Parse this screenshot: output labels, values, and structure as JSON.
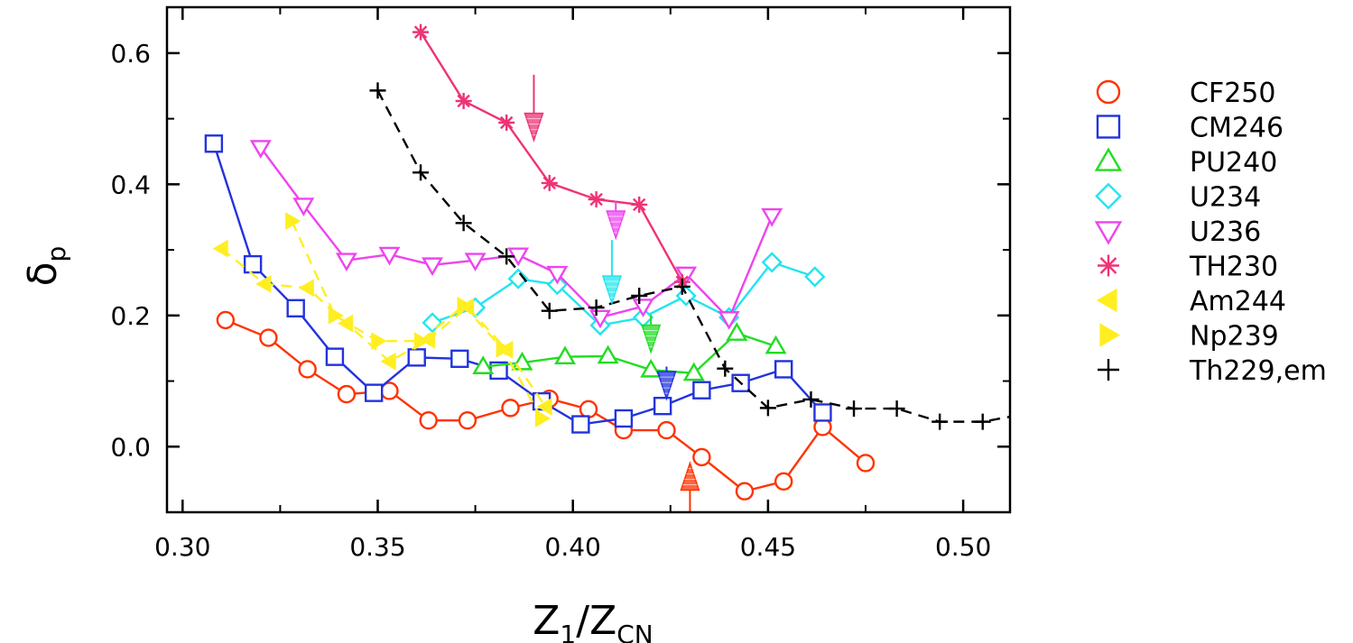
{
  "chart_data": {
    "type": "line",
    "xlabel_main": "Z",
    "xlabel_sub1": "1",
    "xlabel_slash": "/Z",
    "xlabel_sub2": "CN",
    "ylabel_main": "δ",
    "ylabel_sub": "p",
    "xlim": [
      0.296,
      0.512
    ],
    "ylim": [
      -0.1,
      0.67
    ],
    "x_ticks": [
      0.3,
      0.35,
      0.4,
      0.45,
      0.5
    ],
    "x_tick_labels": [
      "0.30",
      "0.35",
      "0.40",
      "0.45",
      "0.50"
    ],
    "y_ticks": [
      0.0,
      0.2,
      0.4,
      0.6
    ],
    "y_tick_labels": [
      "0.0",
      "0.2",
      "0.4",
      "0.6"
    ],
    "legend_position": "right, outside plot",
    "series": [
      {
        "name": "CF250",
        "color": "#ff3300",
        "marker": "circle",
        "line": "solid",
        "x": [
          0.311,
          0.322,
          0.332,
          0.342,
          0.353,
          0.363,
          0.373,
          0.384,
          0.394,
          0.404,
          0.413,
          0.424,
          0.433,
          0.444,
          0.454,
          0.464,
          0.475
        ],
        "y": [
          0.193,
          0.166,
          0.118,
          0.08,
          0.085,
          0.04,
          0.04,
          0.059,
          0.073,
          0.057,
          0.025,
          0.025,
          -0.016,
          -0.068,
          -0.053,
          0.03,
          -0.025
        ]
      },
      {
        "name": "CM246",
        "color": "#2233dd",
        "marker": "square",
        "line": "solid",
        "x": [
          0.308,
          0.318,
          0.329,
          0.339,
          0.349,
          0.36,
          0.371,
          0.381,
          0.392,
          0.402,
          0.413,
          0.423,
          0.433,
          0.443,
          0.454,
          0.464
        ],
        "y": [
          0.462,
          0.278,
          0.211,
          0.137,
          0.082,
          0.136,
          0.134,
          0.116,
          0.069,
          0.034,
          0.043,
          0.062,
          0.086,
          0.097,
          0.118,
          0.052
        ]
      },
      {
        "name": "PU240",
        "color": "#22dd22",
        "marker": "triangle-up",
        "line": "solid",
        "x": [
          0.377,
          0.387,
          0.398,
          0.409,
          0.42,
          0.431,
          0.442,
          0.452
        ],
        "y": [
          0.122,
          0.128,
          0.137,
          0.138,
          0.117,
          0.112,
          0.173,
          0.153
        ]
      },
      {
        "name": "U234",
        "color": "#22e5ee",
        "marker": "diamond",
        "line": "solid",
        "x": [
          0.364,
          0.375,
          0.386,
          0.396,
          0.407,
          0.418,
          0.429,
          0.44,
          0.451,
          0.462
        ],
        "y": [
          0.189,
          0.212,
          0.256,
          0.247,
          0.185,
          0.197,
          0.23,
          0.197,
          0.281,
          0.259
        ]
      },
      {
        "name": "U236",
        "color": "#ee44ee",
        "marker": "triangle-down",
        "line": "solid",
        "x": [
          0.32,
          0.331,
          0.342,
          0.353,
          0.364,
          0.375,
          0.386,
          0.396,
          0.407,
          0.418,
          0.429,
          0.44,
          0.451
        ],
        "y": [
          0.456,
          0.368,
          0.284,
          0.293,
          0.277,
          0.284,
          0.292,
          0.264,
          0.197,
          0.214,
          0.263,
          0.195,
          0.352
        ]
      },
      {
        "name": "TH230",
        "color": "#ee3377",
        "marker": "asterisk",
        "line": "solid",
        "x": [
          0.361,
          0.372,
          0.383,
          0.394,
          0.406,
          0.417,
          0.428
        ],
        "y": [
          0.632,
          0.527,
          0.494,
          0.402,
          0.377,
          0.369,
          0.251
        ]
      },
      {
        "name": "Am244",
        "color": "#ffee22",
        "marker": "triangle-left",
        "line": "dashed",
        "x": [
          0.31,
          0.321,
          0.332,
          0.342,
          0.353,
          0.363,
          0.373,
          0.383,
          0.393
        ],
        "y": [
          0.302,
          0.248,
          0.242,
          0.188,
          0.13,
          0.163,
          0.213,
          0.148,
          0.061
        ]
      },
      {
        "name": "Np239",
        "color": "#ffee22",
        "marker": "triangle-right",
        "line": "dashed",
        "x": [
          0.328,
          0.339,
          0.35,
          0.361,
          0.372,
          0.382,
          0.392
        ],
        "y": [
          0.344,
          0.2,
          0.161,
          0.161,
          0.215,
          0.149,
          0.043
        ]
      },
      {
        "name": "Th229,em",
        "color": "#000000",
        "marker": "plus",
        "line": "dashed",
        "x": [
          0.35,
          0.361,
          0.372,
          0.383,
          0.394,
          0.406,
          0.417,
          0.428,
          0.439,
          0.45,
          0.461,
          0.472,
          0.483,
          0.494,
          0.505,
          0.516
        ],
        "y": [
          0.543,
          0.418,
          0.341,
          0.29,
          0.207,
          0.212,
          0.23,
          0.244,
          0.119,
          0.059,
          0.072,
          0.058,
          0.058,
          0.038,
          0.038,
          0.05
        ]
      }
    ],
    "arrows": [
      {
        "color": "#ee3377",
        "direction": "down",
        "x": 0.39,
        "y_tip": 0.467,
        "y_tail": 0.567
      },
      {
        "color": "#ee44ee",
        "direction": "down",
        "x": 0.411,
        "y_tip": 0.318,
        "y_tail": 0.375
      },
      {
        "color": "#22e5ee",
        "direction": "down",
        "x": 0.41,
        "y_tip": 0.219,
        "y_tail": 0.315
      },
      {
        "color": "#22dd22",
        "direction": "down",
        "x": 0.42,
        "y_tip": 0.144,
        "y_tail": 0.201
      },
      {
        "color": "#2233dd",
        "direction": "down",
        "x": 0.424,
        "y_tip": 0.073,
        "y_tail": 0.122
      },
      {
        "color": "#ff3300",
        "direction": "up",
        "x": 0.43,
        "y_tip": -0.025,
        "y_tail": -0.1
      }
    ]
  }
}
